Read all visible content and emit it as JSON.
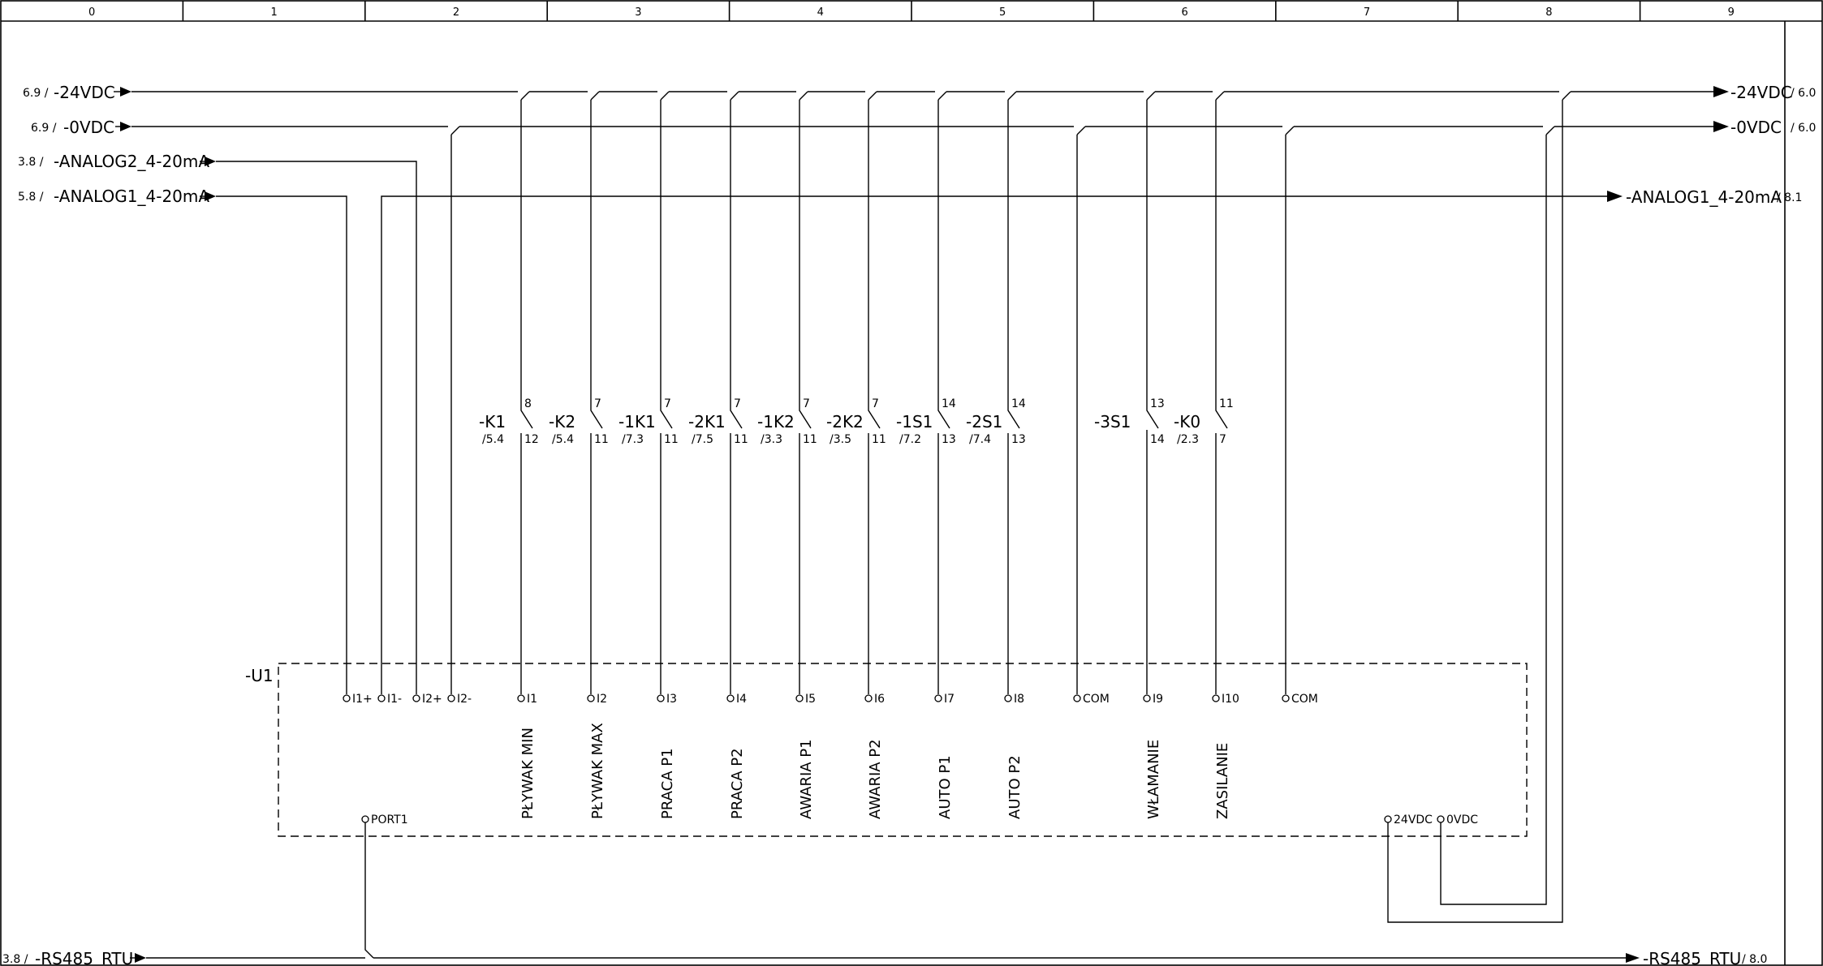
{
  "columns": [
    "0",
    "1",
    "2",
    "3",
    "4",
    "5",
    "6",
    "7",
    "8",
    "9"
  ],
  "potentials": {
    "p24_left": {
      "ref": "6.9 /",
      "name": "-24VDC"
    },
    "p0_left": {
      "ref": "6.9 /",
      "name": "-0VDC"
    },
    "an2_left": {
      "ref": "3.8 /",
      "name": "-ANALOG2_4-20mA"
    },
    "an1_left": {
      "ref": "5.8 /",
      "name": "-ANALOG1_4-20mA"
    },
    "rs_left": {
      "ref": "3.8 /",
      "name": "-RS485_RTU"
    },
    "p24_right": {
      "name": "-24VDC",
      "ref": "/ 6.0"
    },
    "p0_right": {
      "name": "-0VDC",
      "ref": "/ 6.0"
    },
    "an1_right": {
      "name": "-ANALOG1_4-20mA",
      "ref": "/ 8.1"
    },
    "rs_right": {
      "name": "-RS485_RTU",
      "ref": "/ 8.0"
    }
  },
  "contacts": [
    {
      "name": "-K1",
      "ref": "/5.4",
      "top": "8",
      "bottom": "12"
    },
    {
      "name": "-K2",
      "ref": "/5.4",
      "top": "7",
      "bottom": "11"
    },
    {
      "name": "-1K1",
      "ref": "/7.3",
      "top": "7",
      "bottom": "11"
    },
    {
      "name": "-2K1",
      "ref": "/7.5",
      "top": "7",
      "bottom": "11"
    },
    {
      "name": "-1K2",
      "ref": "/3.3",
      "top": "7",
      "bottom": "11"
    },
    {
      "name": "-2K2",
      "ref": "/3.5",
      "top": "7",
      "bottom": "11"
    },
    {
      "name": "-1S1",
      "ref": "/7.2",
      "top": "14",
      "bottom": "13"
    },
    {
      "name": "-2S1",
      "ref": "/7.4",
      "top": "14",
      "bottom": "13"
    },
    {
      "name": "-3S1",
      "ref": "",
      "top": "13",
      "bottom": "14"
    },
    {
      "name": "-K0",
      "ref": "/2.3",
      "top": "11",
      "bottom": "7"
    }
  ],
  "device": {
    "name": "-U1",
    "analog_terminals": [
      "I1+",
      "I1-",
      "I2+",
      "I2-"
    ],
    "inputs": [
      {
        "terminal": "I1",
        "label": "PŁYWAK MIN"
      },
      {
        "terminal": "I2",
        "label": "PŁYWAK MAX"
      },
      {
        "terminal": "I3",
        "label": "PRACA P1"
      },
      {
        "terminal": "I4",
        "label": "PRACA P2"
      },
      {
        "terminal": "I5",
        "label": "AWARIA P1"
      },
      {
        "terminal": "I6",
        "label": "AWARIA P2"
      },
      {
        "terminal": "I7",
        "label": "AUTO P1"
      },
      {
        "terminal": "I8",
        "label": "AUTO P2"
      },
      {
        "terminal": "COM",
        "label": ""
      },
      {
        "terminal": "I9",
        "label": "WŁAMANIE"
      },
      {
        "terminal": "I10",
        "label": "ZASILANIE"
      },
      {
        "terminal": "COM",
        "label": ""
      }
    ],
    "port": "PORT1",
    "supply": [
      "24VDC",
      "0VDC"
    ]
  }
}
